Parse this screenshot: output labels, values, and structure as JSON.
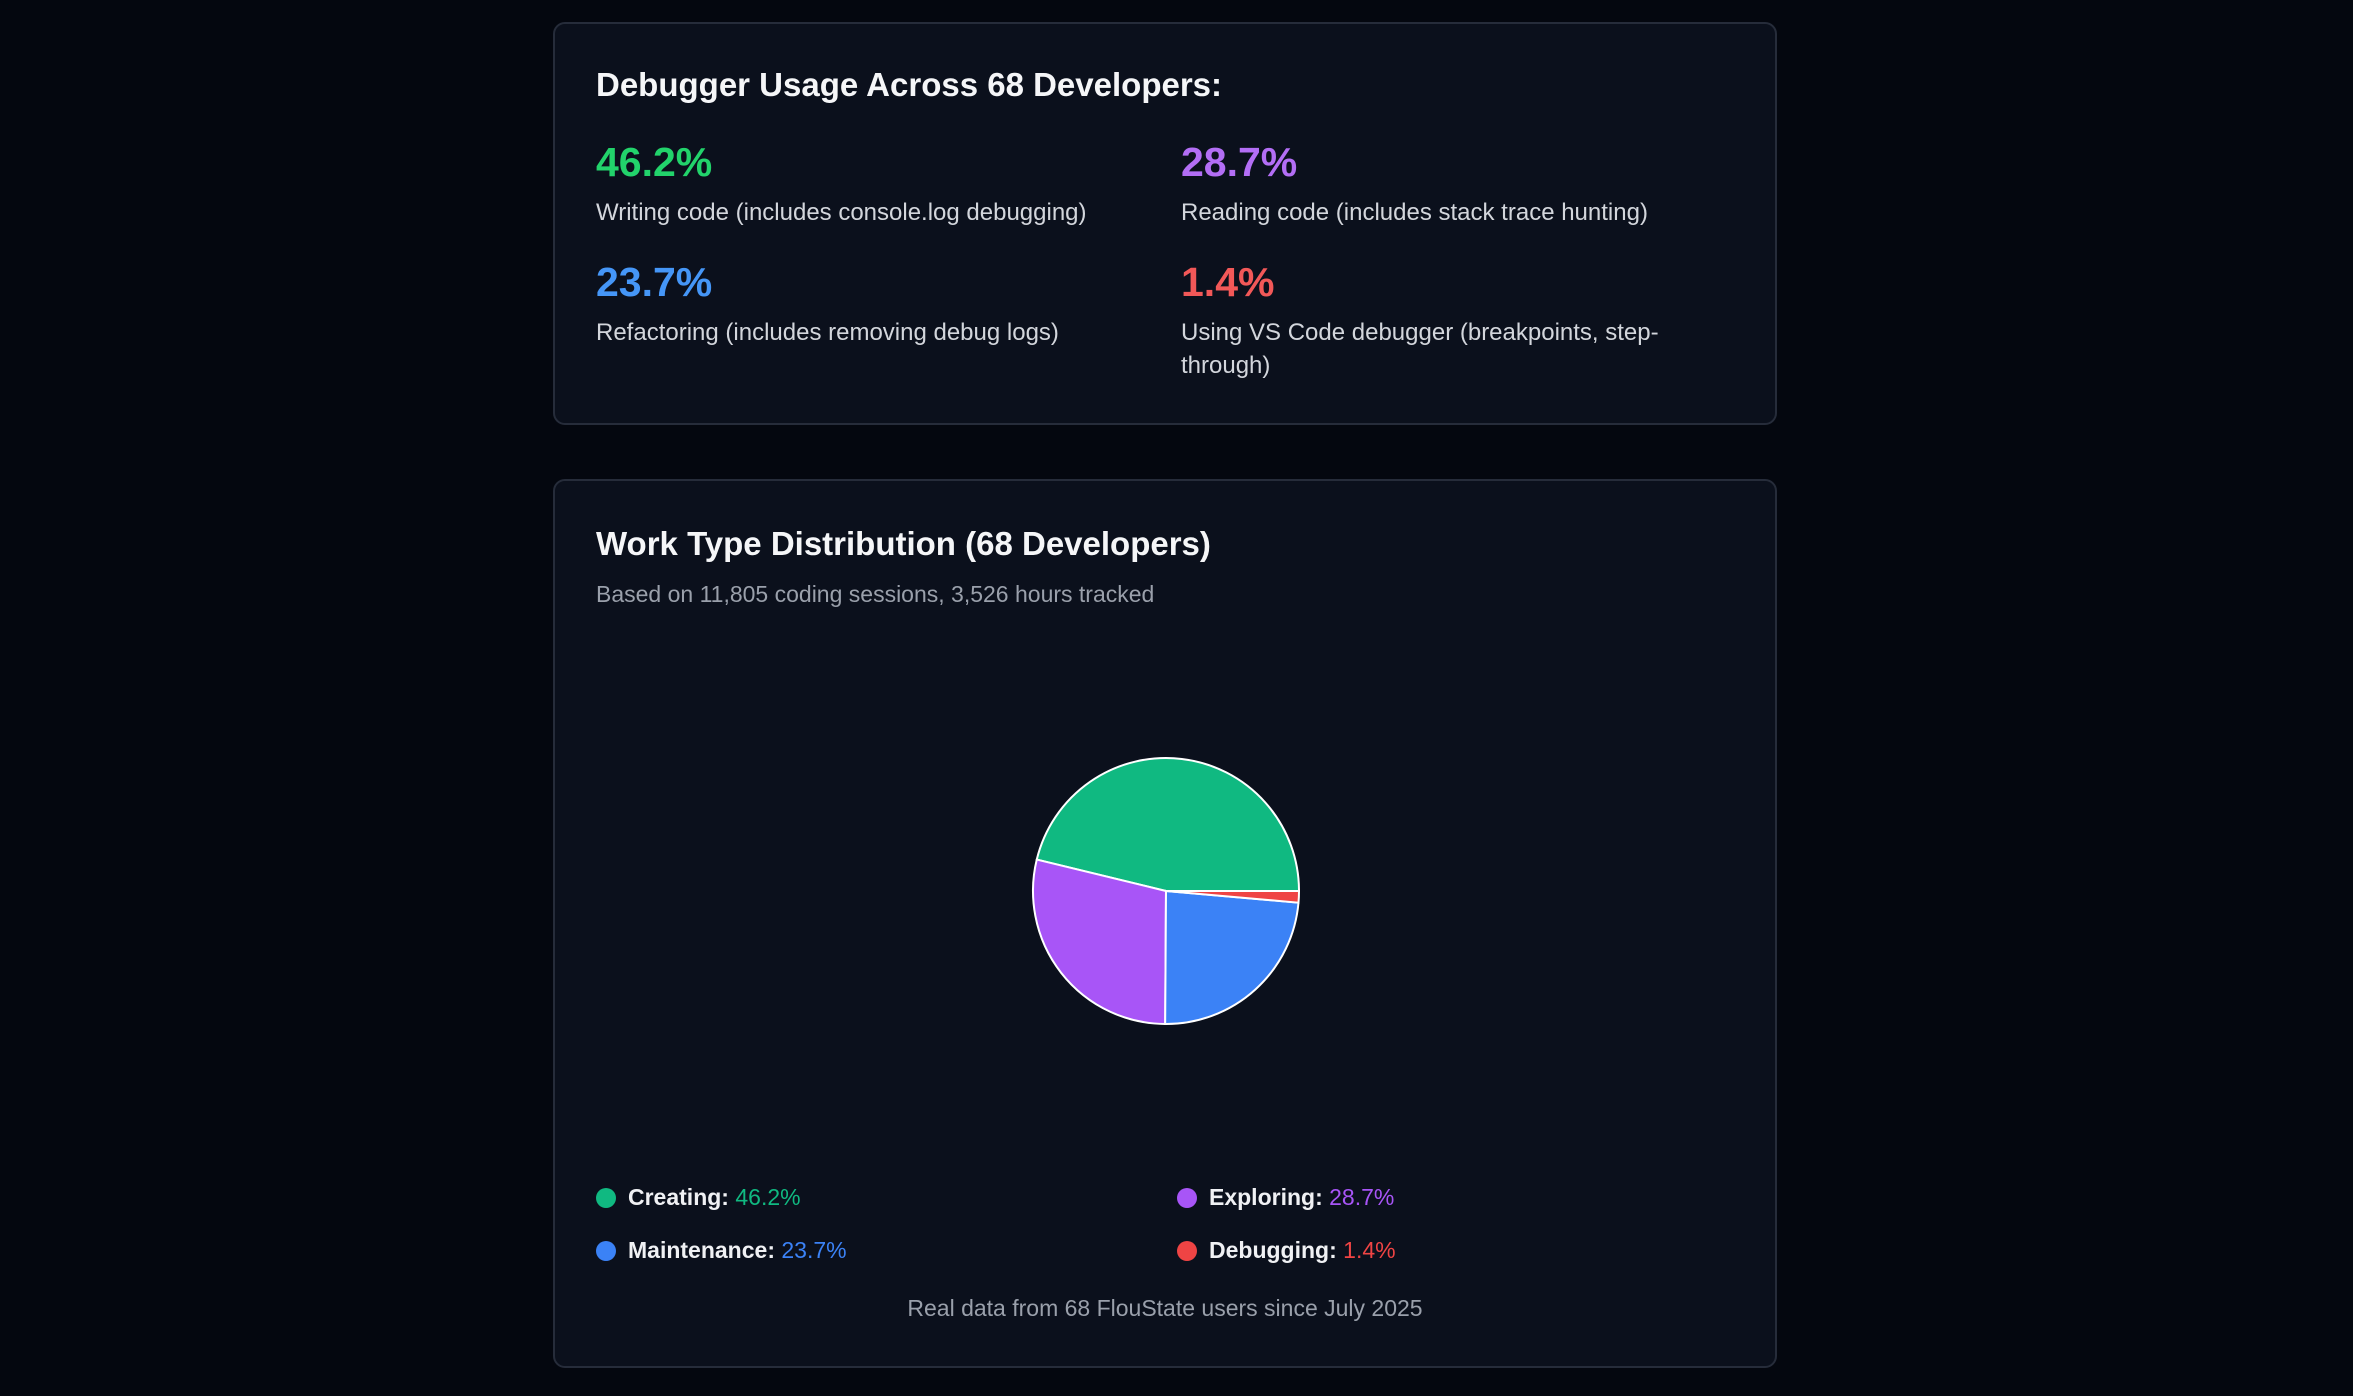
{
  "debugger_card": {
    "title": "Debugger Usage Across 68 Developers:",
    "stats": [
      {
        "value": "46.2%",
        "label": "Writing code (includes console.log debugging)",
        "color": "#22d36b"
      },
      {
        "value": "28.7%",
        "label": "Reading code (includes stack trace hunting)",
        "color": "#b36ef5"
      },
      {
        "value": "23.7%",
        "label": "Refactoring (includes removing debug logs)",
        "color": "#4596f7"
      },
      {
        "value": "1.4%",
        "label": "Using VS Code debugger (breakpoints, step-through)",
        "color": "#f25858"
      }
    ]
  },
  "chart_data": {
    "type": "pie",
    "title": "Work Type Distribution (68 Developers)",
    "subtitle": "Based on 11,805 coding sessions, 3,526 hours tracked",
    "categories": [
      "Creating",
      "Exploring",
      "Maintenance",
      "Debugging"
    ],
    "values": [
      46.2,
      28.7,
      23.7,
      1.4
    ],
    "value_labels": [
      "46.2%",
      "28.7%",
      "23.7%",
      "1.4%"
    ],
    "colors": [
      "#10b981",
      "#a855f7",
      "#3b82f6",
      "#ef4444"
    ],
    "legend_placement": "bottom",
    "footer": "Real data from 68 FlouState users since July 2025"
  }
}
